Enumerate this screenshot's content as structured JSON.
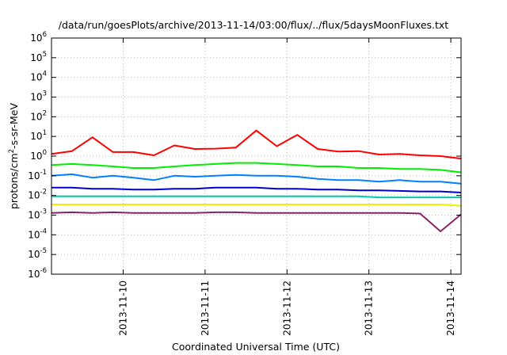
{
  "chart_data": {
    "type": "line",
    "title": "/data/run/goesPlots/archive/2013-11-14/03:00/flux/../flux/5daysMoonFluxes.txt",
    "xlabel": "Coordinated Universal Time (UTC)",
    "ylabel_parts": [
      "protons/cm",
      "2",
      "-s-sr-MeV"
    ],
    "y_scale": "log",
    "ylim": [
      1e-06,
      1000000.0
    ],
    "y_ticks": [
      {
        "exp": -6,
        "base": "10",
        "sup": "-6"
      },
      {
        "exp": -5,
        "base": "10",
        "sup": "-5"
      },
      {
        "exp": -4,
        "base": "10",
        "sup": "-4"
      },
      {
        "exp": -3,
        "base": "10",
        "sup": "-3"
      },
      {
        "exp": -2,
        "base": "10",
        "sup": "-2"
      },
      {
        "exp": -1,
        "base": "10",
        "sup": "-1"
      },
      {
        "exp": 0,
        "base": "10",
        "sup": "0"
      },
      {
        "exp": 1,
        "base": "10",
        "sup": "1"
      },
      {
        "exp": 2,
        "base": "10",
        "sup": "2"
      },
      {
        "exp": 3,
        "base": "10",
        "sup": "3"
      },
      {
        "exp": 4,
        "base": "10",
        "sup": "4"
      },
      {
        "exp": 5,
        "base": "10",
        "sup": "5"
      },
      {
        "exp": 6,
        "base": "10",
        "sup": "6"
      }
    ],
    "xlim": [
      "2013-11-09 03:00",
      "2013-11-14 03:00"
    ],
    "x_ticks": [
      "2013-11-10",
      "2013-11-11",
      "2013-11-12",
      "2013-11-13",
      "2013-11-14"
    ],
    "grid": true,
    "x": [
      "2013-11-09 03:00",
      "2013-11-09 09:00",
      "2013-11-09 15:00",
      "2013-11-09 21:00",
      "2013-11-10 03:00",
      "2013-11-10 09:00",
      "2013-11-10 15:00",
      "2013-11-10 21:00",
      "2013-11-11 03:00",
      "2013-11-11 09:00",
      "2013-11-11 15:00",
      "2013-11-11 21:00",
      "2013-11-12 03:00",
      "2013-11-12 09:00",
      "2013-11-12 15:00",
      "2013-11-12 21:00",
      "2013-11-13 03:00",
      "2013-11-13 09:00",
      "2013-11-13 15:00",
      "2013-11-13 21:00",
      "2013-11-14 03:00"
    ],
    "series": [
      {
        "color": "#ff0000",
        "values": [
          1.3,
          1.8,
          9.0,
          1.6,
          1.6,
          1.1,
          3.5,
          2.3,
          2.4,
          2.7,
          20,
          3.2,
          12,
          2.3,
          1.7,
          1.8,
          1.2,
          1.3,
          1.1,
          1.0,
          0.75
        ]
      },
      {
        "color": "#00ee00",
        "values": [
          0.35,
          0.4,
          0.35,
          0.3,
          0.25,
          0.25,
          0.3,
          0.35,
          0.4,
          0.45,
          0.45,
          0.4,
          0.35,
          0.3,
          0.3,
          0.25,
          0.25,
          0.22,
          0.22,
          0.2,
          0.15
        ]
      },
      {
        "color": "#0080ff",
        "values": [
          0.1,
          0.12,
          0.08,
          0.1,
          0.08,
          0.06,
          0.1,
          0.09,
          0.1,
          0.11,
          0.1,
          0.1,
          0.09,
          0.07,
          0.06,
          0.06,
          0.05,
          0.06,
          0.05,
          0.05,
          0.04
        ]
      },
      {
        "color": "#0000cc",
        "values": [
          0.025,
          0.025,
          0.022,
          0.022,
          0.02,
          0.02,
          0.022,
          0.022,
          0.025,
          0.025,
          0.025,
          0.022,
          0.022,
          0.02,
          0.02,
          0.018,
          0.018,
          0.017,
          0.016,
          0.016,
          0.014
        ]
      },
      {
        "color": "#00ccaa",
        "values": [
          0.009,
          0.009,
          0.009,
          0.009,
          0.009,
          0.009,
          0.009,
          0.009,
          0.009,
          0.009,
          0.009,
          0.009,
          0.009,
          0.009,
          0.009,
          0.009,
          0.008,
          0.008,
          0.008,
          0.008,
          0.008
        ]
      },
      {
        "color": "#eeee00",
        "values": [
          0.0035,
          0.0035,
          0.0035,
          0.0035,
          0.0035,
          0.0035,
          0.0035,
          0.0035,
          0.0035,
          0.0035,
          0.0035,
          0.0035,
          0.0035,
          0.0035,
          0.0035,
          0.0035,
          0.0035,
          0.0035,
          0.0035,
          0.0035,
          0.003
        ]
      },
      {
        "color": "#882266",
        "values": [
          0.0013,
          0.0014,
          0.0013,
          0.0014,
          0.0013,
          0.0013,
          0.0013,
          0.0013,
          0.0014,
          0.0014,
          0.0013,
          0.0013,
          0.0013,
          0.0013,
          0.0013,
          0.0013,
          0.0013,
          0.0013,
          0.0012,
          0.00015,
          0.0011
        ]
      }
    ]
  }
}
